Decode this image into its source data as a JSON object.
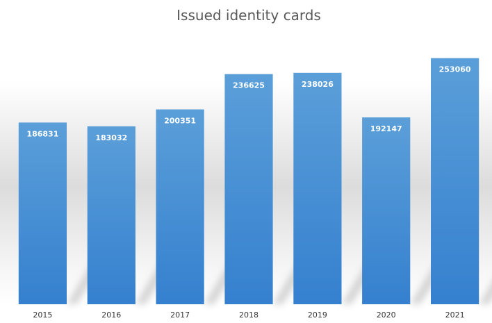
{
  "chart_data": {
    "type": "bar",
    "title": "Issued identity cards",
    "xlabel": "",
    "ylabel": "",
    "categories": [
      "2015",
      "2016",
      "2017",
      "2018",
      "2019",
      "2020",
      "2021"
    ],
    "values": [
      186831,
      183032,
      200351,
      236625,
      238026,
      192147,
      253060
    ],
    "ylim": [
      0,
      270000
    ],
    "grid": false,
    "legend": "none",
    "data_labels": "inside-top",
    "colors": {
      "bar_top": "#5b9fd9",
      "bar_bottom": "#3580cf",
      "label_text": "#ffffff",
      "title_text": "#595959",
      "tick_text": "#333333"
    }
  }
}
